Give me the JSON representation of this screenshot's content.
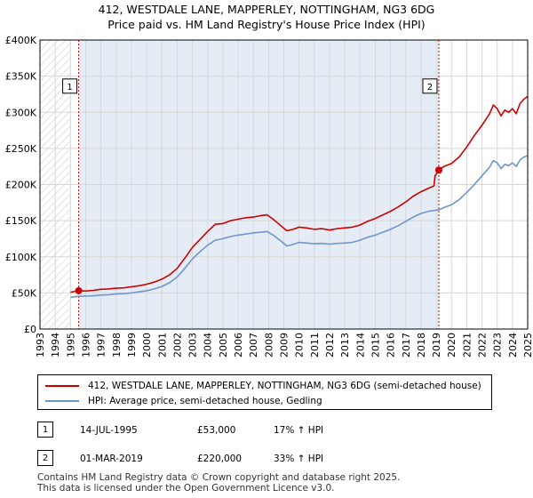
{
  "title_line1": "412, WESTDALE LANE, MAPPERLEY, NOTTINGHAM, NG3 6DG",
  "title_line2": "Price paid vs. HM Land Registry's House Price Index (HPI)",
  "colors": {
    "property": "#cc0000",
    "hpi": "#6c97cc",
    "grid": "#d7d7d7",
    "shade": "#e6ecf6",
    "vline": "#cc0000"
  },
  "chart_data": {
    "type": "line",
    "xlabel": "",
    "ylabel": "",
    "xlim": [
      1993,
      2025
    ],
    "ylim": [
      0,
      400000
    ],
    "yticks": [
      {
        "value": 0,
        "label": "£0"
      },
      {
        "value": 50000,
        "label": "£50K"
      },
      {
        "value": 100000,
        "label": "£100K"
      },
      {
        "value": 150000,
        "label": "£150K"
      },
      {
        "value": 200000,
        "label": "£200K"
      },
      {
        "value": 250000,
        "label": "£250K"
      },
      {
        "value": 300000,
        "label": "£300K"
      },
      {
        "value": 350000,
        "label": "£350K"
      },
      {
        "value": 400000,
        "label": "£400K"
      }
    ],
    "xticks": [
      "1993",
      "1994",
      "1995",
      "1996",
      "1997",
      "1998",
      "1999",
      "2000",
      "2001",
      "2002",
      "2003",
      "2004",
      "2005",
      "2006",
      "2007",
      "2008",
      "2009",
      "2010",
      "2011",
      "2012",
      "2013",
      "2014",
      "2015",
      "2016",
      "2017",
      "2018",
      "2019",
      "2020",
      "2021",
      "2022",
      "2023",
      "2024",
      "2025"
    ],
    "hatched_ranges": [
      [
        1993,
        1995.0
      ],
      [
        2025.0,
        2025.3
      ]
    ],
    "series": [
      {
        "name": "412, WESTDALE LANE, MAPPERLEY, NOTTINGHAM, NG3 6DG (semi-detached house)",
        "color": "#cc0000",
        "points": [
          [
            1995.0,
            51000
          ],
          [
            1995.54,
            53000
          ],
          [
            1996.0,
            52500
          ],
          [
            1996.5,
            53500
          ],
          [
            1997.0,
            55000
          ],
          [
            1997.5,
            55500
          ],
          [
            1998.0,
            56500
          ],
          [
            1998.5,
            57000
          ],
          [
            1999.0,
            58500
          ],
          [
            1999.5,
            60000
          ],
          [
            2000.0,
            62000
          ],
          [
            2000.5,
            65000
          ],
          [
            2001.0,
            69000
          ],
          [
            2001.5,
            75000
          ],
          [
            2002.0,
            84000
          ],
          [
            2002.5,
            98000
          ],
          [
            2003.0,
            113000
          ],
          [
            2003.5,
            124000
          ],
          [
            2004.0,
            135000
          ],
          [
            2004.5,
            145000
          ],
          [
            2005.0,
            146000
          ],
          [
            2005.5,
            150000
          ],
          [
            2006.0,
            152000
          ],
          [
            2006.5,
            154000
          ],
          [
            2007.0,
            155000
          ],
          [
            2007.5,
            157000
          ],
          [
            2007.9,
            158000
          ],
          [
            2008.3,
            152000
          ],
          [
            2008.8,
            143000
          ],
          [
            2009.2,
            136000
          ],
          [
            2009.6,
            138000
          ],
          [
            2010.0,
            141000
          ],
          [
            2010.5,
            140000
          ],
          [
            2011.0,
            138000
          ],
          [
            2011.5,
            139000
          ],
          [
            2012.0,
            137000
          ],
          [
            2012.5,
            139000
          ],
          [
            2013.0,
            140000
          ],
          [
            2013.5,
            141000
          ],
          [
            2014.0,
            144000
          ],
          [
            2014.5,
            149000
          ],
          [
            2015.0,
            153000
          ],
          [
            2015.5,
            158000
          ],
          [
            2016.0,
            163000
          ],
          [
            2016.5,
            169000
          ],
          [
            2017.0,
            176000
          ],
          [
            2017.5,
            184000
          ],
          [
            2018.0,
            190000
          ],
          [
            2018.5,
            195000
          ],
          [
            2018.85,
            198000
          ],
          [
            2018.92,
            212000
          ],
          [
            2019.17,
            220000
          ],
          [
            2019.5,
            225000
          ],
          [
            2020.0,
            229000
          ],
          [
            2020.5,
            238000
          ],
          [
            2021.0,
            252000
          ],
          [
            2021.5,
            268000
          ],
          [
            2022.0,
            282000
          ],
          [
            2022.5,
            298000
          ],
          [
            2022.75,
            310000
          ],
          [
            2023.0,
            305000
          ],
          [
            2023.25,
            295000
          ],
          [
            2023.5,
            303000
          ],
          [
            2023.75,
            300000
          ],
          [
            2024.0,
            305000
          ],
          [
            2024.25,
            298000
          ],
          [
            2024.5,
            312000
          ],
          [
            2024.75,
            318000
          ],
          [
            2025.0,
            322000
          ]
        ]
      },
      {
        "name": "HPI: Average price, semi-detached house, Gedling",
        "color": "#6c97cc",
        "points": [
          [
            1995.0,
            44000
          ],
          [
            1995.54,
            45300
          ],
          [
            1996.0,
            45500
          ],
          [
            1996.5,
            46000
          ],
          [
            1997.0,
            47000
          ],
          [
            1997.5,
            47500
          ],
          [
            1998.0,
            48500
          ],
          [
            1998.5,
            49000
          ],
          [
            1999.0,
            50000
          ],
          [
            1999.5,
            51500
          ],
          [
            2000.0,
            53000
          ],
          [
            2000.5,
            55500
          ],
          [
            2001.0,
            59000
          ],
          [
            2001.5,
            64000
          ],
          [
            2002.0,
            72000
          ],
          [
            2002.5,
            84000
          ],
          [
            2003.0,
            97000
          ],
          [
            2003.5,
            107000
          ],
          [
            2004.0,
            116000
          ],
          [
            2004.5,
            123000
          ],
          [
            2005.0,
            125000
          ],
          [
            2005.5,
            128000
          ],
          [
            2006.0,
            130000
          ],
          [
            2006.5,
            131500
          ],
          [
            2007.0,
            133000
          ],
          [
            2007.5,
            134000
          ],
          [
            2007.9,
            135000
          ],
          [
            2008.3,
            130000
          ],
          [
            2008.8,
            122000
          ],
          [
            2009.2,
            115000
          ],
          [
            2009.6,
            117000
          ],
          [
            2010.0,
            120000
          ],
          [
            2010.5,
            119000
          ],
          [
            2011.0,
            118000
          ],
          [
            2011.5,
            118500
          ],
          [
            2012.0,
            117500
          ],
          [
            2012.5,
            118500
          ],
          [
            2013.0,
            119000
          ],
          [
            2013.5,
            120000
          ],
          [
            2014.0,
            123000
          ],
          [
            2014.5,
            127000
          ],
          [
            2015.0,
            130000
          ],
          [
            2015.5,
            134000
          ],
          [
            2016.0,
            138000
          ],
          [
            2016.5,
            143000
          ],
          [
            2017.0,
            149000
          ],
          [
            2017.5,
            155000
          ],
          [
            2018.0,
            160000
          ],
          [
            2018.5,
            163000
          ],
          [
            2019.17,
            165000
          ],
          [
            2019.5,
            168000
          ],
          [
            2020.0,
            172000
          ],
          [
            2020.5,
            179000
          ],
          [
            2021.0,
            189000
          ],
          [
            2021.5,
            200000
          ],
          [
            2022.0,
            212000
          ],
          [
            2022.5,
            224000
          ],
          [
            2022.75,
            233000
          ],
          [
            2023.0,
            230000
          ],
          [
            2023.25,
            222000
          ],
          [
            2023.5,
            228000
          ],
          [
            2023.75,
            226000
          ],
          [
            2024.0,
            230000
          ],
          [
            2024.25,
            225000
          ],
          [
            2024.5,
            234000
          ],
          [
            2024.75,
            238000
          ],
          [
            2025.0,
            240000
          ]
        ]
      }
    ],
    "sales": [
      {
        "label": "1",
        "x": 1995.54,
        "y": 53000
      },
      {
        "label": "2",
        "x": 2019.17,
        "y": 220000
      }
    ],
    "annotation_box_y": 335000
  },
  "legend": {
    "property_label": "412, WESTDALE LANE, MAPPERLEY, NOTTINGHAM, NG3 6DG (semi-detached house)",
    "hpi_label": "HPI: Average price, semi-detached house, Gedling"
  },
  "sales_table": [
    {
      "num": "1",
      "date": "14-JUL-1995",
      "price": "£53,000",
      "hpi": "17% ↑ HPI"
    },
    {
      "num": "2",
      "date": "01-MAR-2019",
      "price": "£220,000",
      "hpi": "33% ↑ HPI"
    }
  ],
  "footer": {
    "line1": "Contains HM Land Registry data © Crown copyright and database right 2025.",
    "line2": "This data is licensed under the Open Government Licence v3.0."
  }
}
